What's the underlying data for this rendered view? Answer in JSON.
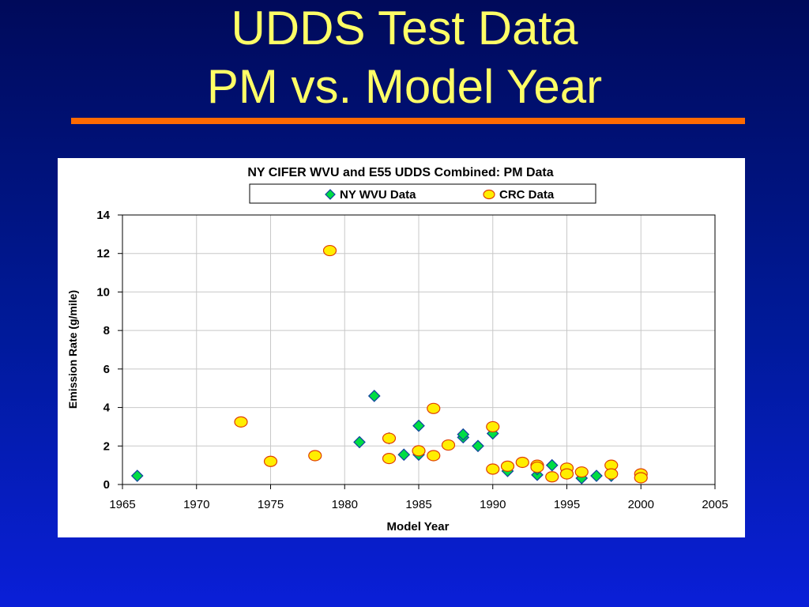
{
  "slide": {
    "title_line1": "UDDS Test Data",
    "title_line2": "PM vs. Model Year",
    "accent": "#ff6a00",
    "title_color": "#ffff66"
  },
  "chart_data": {
    "type": "scatter",
    "title": "NY CIFER WVU and E55 UDDS Combined: PM Data",
    "xlabel": "Model Year",
    "ylabel": "Emission Rate (g/mile)",
    "xlim": [
      1965,
      2005
    ],
    "ylim": [
      0,
      14
    ],
    "xticks": [
      1965,
      1970,
      1975,
      1980,
      1985,
      1990,
      1995,
      2000,
      2005
    ],
    "yticks": [
      0,
      2,
      4,
      6,
      8,
      10,
      12,
      14
    ],
    "grid": true,
    "legend": "top",
    "series": [
      {
        "name": "NY WVU Data",
        "marker": "diamond",
        "color": "#00dd44",
        "edge": "#1040a0",
        "points": [
          [
            1966,
            0.45
          ],
          [
            1981,
            2.2
          ],
          [
            1982,
            4.6
          ],
          [
            1983,
            2.4
          ],
          [
            1984,
            1.55
          ],
          [
            1985,
            3.05
          ],
          [
            1985,
            1.55
          ],
          [
            1988,
            2.45
          ],
          [
            1988,
            2.6
          ],
          [
            1989,
            2.0
          ],
          [
            1990,
            2.65
          ],
          [
            1991,
            0.7
          ],
          [
            1993,
            0.5
          ],
          [
            1993,
            0.8
          ],
          [
            1994,
            1.0
          ],
          [
            1996,
            0.33
          ],
          [
            1997,
            0.45
          ],
          [
            1998,
            0.45
          ]
        ]
      },
      {
        "name": "CRC Data",
        "marker": "circle",
        "color": "#ffee00",
        "edge": "#e04000",
        "points": [
          [
            1973,
            3.25
          ],
          [
            1975,
            1.2
          ],
          [
            1978,
            1.5
          ],
          [
            1979,
            12.15
          ],
          [
            1983,
            2.4
          ],
          [
            1983,
            1.35
          ],
          [
            1985,
            1.75
          ],
          [
            1986,
            3.95
          ],
          [
            1986,
            1.5
          ],
          [
            1987,
            2.05
          ],
          [
            1990,
            3.0
          ],
          [
            1990,
            0.8
          ],
          [
            1991,
            0.95
          ],
          [
            1992,
            1.15
          ],
          [
            1993,
            1.0
          ],
          [
            1993,
            0.9
          ],
          [
            1994,
            0.4
          ],
          [
            1995,
            0.85
          ],
          [
            1995,
            0.55
          ],
          [
            1996,
            0.65
          ],
          [
            1998,
            1.0
          ],
          [
            1998,
            0.55
          ],
          [
            2000,
            0.55
          ],
          [
            2000,
            0.35
          ]
        ]
      }
    ]
  }
}
